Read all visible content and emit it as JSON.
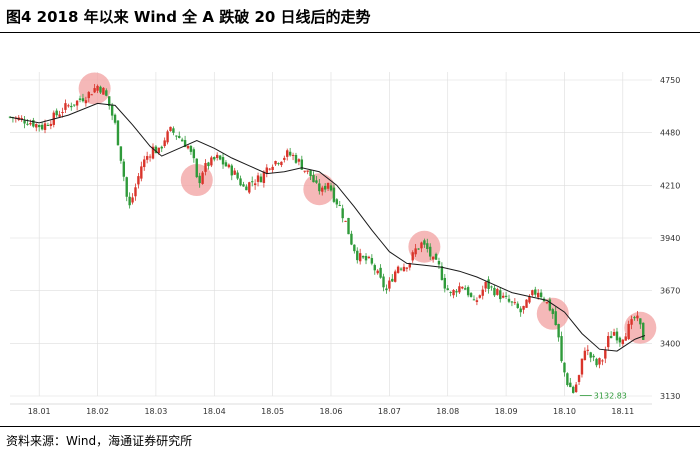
{
  "header": {
    "title": "图4 2018 年以来 Wind 全 A 跌破 20 日线后的走势"
  },
  "footer": {
    "source": "资料来源：Wind，海通证券研究所"
  },
  "colors": {
    "up": "#d9342b",
    "down": "#2f9a3a",
    "ma20": "#1a1a1a",
    "highlight": "#f2a0a0",
    "grid": "#dddddd"
  },
  "chart_data": {
    "type": "candlestick",
    "title": "",
    "xlabel": "",
    "ylabel": "",
    "ylim": [
      3130,
      4750
    ],
    "yticks": [
      3130,
      3400,
      3670,
      3940,
      4210,
      4480,
      4750
    ],
    "xticks": [
      "18.01",
      "18.02",
      "18.03",
      "18.04",
      "18.05",
      "18.06",
      "18.07",
      "18.08",
      "18.09",
      "18.10",
      "18.11"
    ],
    "xrange_months": [
      0,
      11
    ],
    "tick_months": [
      0.5,
      1.5,
      2.5,
      3.5,
      4.5,
      5.5,
      6.5,
      7.5,
      8.5,
      9.5,
      10.5
    ],
    "series": [
      {
        "name": "",
        "role": "close_path"
      },
      {
        "name": "",
        "role": "ma20"
      }
    ],
    "close_path": [
      [
        0.0,
        4560
      ],
      [
        0.3,
        4540
      ],
      [
        0.55,
        4510
      ],
      [
        0.75,
        4560
      ],
      [
        0.95,
        4610
      ],
      [
        1.15,
        4640
      ],
      [
        1.35,
        4680
      ],
      [
        1.5,
        4720
      ],
      [
        1.62,
        4690
      ],
      [
        1.72,
        4600
      ],
      [
        1.8,
        4520
      ],
      [
        1.86,
        4420
      ],
      [
        1.93,
        4300
      ],
      [
        2.0,
        4150
      ],
      [
        2.05,
        4100
      ],
      [
        2.15,
        4200
      ],
      [
        2.25,
        4310
      ],
      [
        2.35,
        4360
      ],
      [
        2.45,
        4400
      ],
      [
        2.55,
        4380
      ],
      [
        2.65,
        4450
      ],
      [
        2.75,
        4490
      ],
      [
        2.85,
        4470
      ],
      [
        2.95,
        4440
      ],
      [
        3.05,
        4410
      ],
      [
        3.15,
        4330
      ],
      [
        3.22,
        4200
      ],
      [
        3.28,
        4280
      ],
      [
        3.4,
        4320
      ],
      [
        3.55,
        4350
      ],
      [
        3.7,
        4310
      ],
      [
        3.85,
        4270
      ],
      [
        4.0,
        4200
      ],
      [
        4.15,
        4230
      ],
      [
        4.3,
        4250
      ],
      [
        4.45,
        4320
      ],
      [
        4.6,
        4340
      ],
      [
        4.75,
        4370
      ],
      [
        4.85,
        4360
      ],
      [
        4.95,
        4330
      ],
      [
        5.05,
        4290
      ],
      [
        5.15,
        4260
      ],
      [
        5.25,
        4200
      ],
      [
        5.35,
        4180
      ],
      [
        5.45,
        4230
      ],
      [
        5.55,
        4150
      ],
      [
        5.65,
        4100
      ],
      [
        5.75,
        4020
      ],
      [
        5.85,
        3920
      ],
      [
        5.95,
        3850
      ],
      [
        6.05,
        3830
      ],
      [
        6.15,
        3820
      ],
      [
        6.25,
        3780
      ],
      [
        6.35,
        3720
      ],
      [
        6.45,
        3670
      ],
      [
        6.55,
        3740
      ],
      [
        6.65,
        3800
      ],
      [
        6.75,
        3800
      ],
      [
        6.85,
        3820
      ],
      [
        6.95,
        3880
      ],
      [
        7.05,
        3910
      ],
      [
        7.15,
        3880
      ],
      [
        7.25,
        3820
      ],
      [
        7.35,
        3790
      ],
      [
        7.45,
        3700
      ],
      [
        7.55,
        3650
      ],
      [
        7.65,
        3680
      ],
      [
        7.75,
        3700
      ],
      [
        7.85,
        3660
      ],
      [
        7.95,
        3600
      ],
      [
        8.05,
        3650
      ],
      [
        8.15,
        3700
      ],
      [
        8.25,
        3680
      ],
      [
        8.35,
        3660
      ],
      [
        8.45,
        3630
      ],
      [
        8.55,
        3610
      ],
      [
        8.65,
        3590
      ],
      [
        8.75,
        3560
      ],
      [
        8.85,
        3600
      ],
      [
        8.95,
        3650
      ],
      [
        9.05,
        3670
      ],
      [
        9.15,
        3630
      ],
      [
        9.25,
        3580
      ],
      [
        9.32,
        3540
      ],
      [
        9.4,
        3420
      ],
      [
        9.45,
        3300
      ],
      [
        9.55,
        3200
      ],
      [
        9.65,
        3150
      ],
      [
        9.75,
        3230
      ],
      [
        9.85,
        3380
      ],
      [
        9.95,
        3330
      ],
      [
        10.05,
        3290
      ],
      [
        10.15,
        3320
      ],
      [
        10.25,
        3420
      ],
      [
        10.35,
        3460
      ],
      [
        10.45,
        3420
      ],
      [
        10.55,
        3460
      ],
      [
        10.65,
        3500
      ],
      [
        10.72,
        3540
      ],
      [
        10.8,
        3480
      ],
      [
        10.88,
        3400
      ]
    ],
    "ma20_path": [
      [
        0.0,
        4560
      ],
      [
        0.5,
        4530
      ],
      [
        1.0,
        4570
      ],
      [
        1.5,
        4630
      ],
      [
        1.8,
        4620
      ],
      [
        2.1,
        4520
      ],
      [
        2.4,
        4410
      ],
      [
        2.6,
        4360
      ],
      [
        2.9,
        4400
      ],
      [
        3.2,
        4440
      ],
      [
        3.5,
        4400
      ],
      [
        3.8,
        4350
      ],
      [
        4.1,
        4310
      ],
      [
        4.4,
        4270
      ],
      [
        4.7,
        4280
      ],
      [
        5.0,
        4300
      ],
      [
        5.3,
        4280
      ],
      [
        5.6,
        4210
      ],
      [
        5.9,
        4100
      ],
      [
        6.2,
        3980
      ],
      [
        6.5,
        3870
      ],
      [
        6.8,
        3810
      ],
      [
        7.1,
        3800
      ],
      [
        7.4,
        3790
      ],
      [
        7.7,
        3770
      ],
      [
        8.0,
        3740
      ],
      [
        8.3,
        3700
      ],
      [
        8.6,
        3660
      ],
      [
        8.9,
        3640
      ],
      [
        9.2,
        3620
      ],
      [
        9.5,
        3560
      ],
      [
        9.8,
        3450
      ],
      [
        10.1,
        3370
      ],
      [
        10.4,
        3360
      ],
      [
        10.7,
        3420
      ],
      [
        10.88,
        3440
      ]
    ],
    "highlight_months": [
      1.45,
      3.2,
      5.3,
      7.1,
      9.3,
      10.8
    ],
    "annotations": [
      {
        "text": "3132.83",
        "month": 9.9,
        "value": 3132.83
      }
    ]
  }
}
